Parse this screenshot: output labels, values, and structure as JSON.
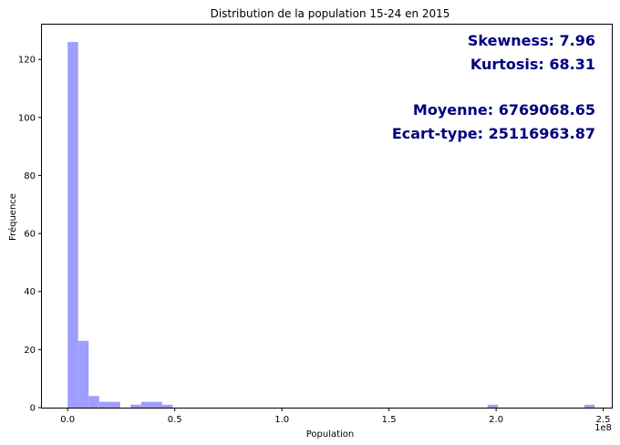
{
  "chart_data": {
    "type": "bar",
    "title": "Distribution de la population 15-24 en 2015",
    "xlabel": "Population",
    "ylabel": "Fréquence",
    "x_offset_label": "1e8",
    "xlim": [
      -0.12,
      2.54
    ],
    "ylim": [
      0,
      132
    ],
    "bar_color": "#9f9dff",
    "x_ticks": [
      {
        "value": 0.0,
        "label": "0.0"
      },
      {
        "value": 0.5,
        "label": "0.5"
      },
      {
        "value": 1.0,
        "label": "1.0"
      },
      {
        "value": 1.5,
        "label": "1.5"
      },
      {
        "value": 2.0,
        "label": "2.0"
      },
      {
        "value": 2.5,
        "label": "2.5"
      }
    ],
    "y_ticks": [
      {
        "value": 0,
        "label": "0"
      },
      {
        "value": 20,
        "label": "20"
      },
      {
        "value": 40,
        "label": "40"
      },
      {
        "value": 60,
        "label": "60"
      },
      {
        "value": 80,
        "label": "80"
      },
      {
        "value": 100,
        "label": "100"
      },
      {
        "value": 120,
        "label": "120"
      }
    ],
    "bin_width": 0.049,
    "bins": [
      {
        "x0": 0.0,
        "count": 126
      },
      {
        "x0": 0.049,
        "count": 23
      },
      {
        "x0": 0.098,
        "count": 4
      },
      {
        "x0": 0.147,
        "count": 2
      },
      {
        "x0": 0.196,
        "count": 2
      },
      {
        "x0": 0.294,
        "count": 1
      },
      {
        "x0": 0.343,
        "count": 2
      },
      {
        "x0": 0.392,
        "count": 2
      },
      {
        "x0": 0.441,
        "count": 1
      },
      {
        "x0": 1.96,
        "count": 1
      },
      {
        "x0": 2.411,
        "count": 1
      }
    ],
    "annotations": {
      "skewness": "Skewness: 7.96",
      "kurtosis": "Kurtosis: 68.31",
      "mean": "Moyenne: 6769068.65",
      "std": "Ecart-type: 25116963.87"
    }
  }
}
